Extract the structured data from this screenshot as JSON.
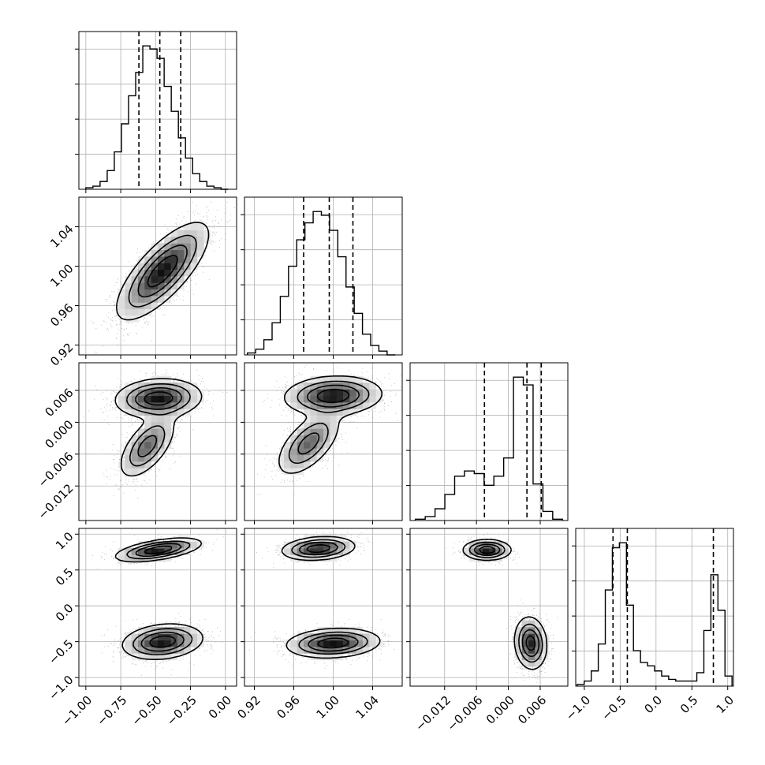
{
  "chart_data": {
    "type": "corner",
    "grid": true,
    "parameters": [
      {
        "range": [
          -1.05,
          0.08
        ],
        "ticks": [
          -1.0,
          -0.75,
          -0.5,
          -0.25,
          0.0
        ],
        "tick_labels": [
          "−1.00",
          "−0.75",
          "−0.50",
          "−0.25",
          "0.00"
        ]
      },
      {
        "range": [
          0.91,
          1.07
        ],
        "ticks": [
          0.92,
          0.96,
          1.0,
          1.04
        ],
        "tick_labels": [
          "0.92",
          "0.96",
          "1.00",
          "1.04"
        ]
      },
      {
        "range": [
          -0.0185,
          0.0112
        ],
        "ticks": [
          -0.012,
          -0.006,
          0.0,
          0.006
        ],
        "tick_labels": [
          "−0.012",
          "−0.006",
          "0.000",
          "0.006"
        ]
      },
      {
        "range": [
          -1.12,
          1.08
        ],
        "ticks": [
          -1.0,
          -0.5,
          0.0,
          0.5,
          1.0
        ],
        "tick_labels": [
          "−1.0",
          "−0.5",
          "0.0",
          "0.5",
          "1.0"
        ]
      }
    ],
    "histograms": [
      {
        "parameter": 0,
        "bin_edges_range": [
          -1.0,
          0.02
        ],
        "counts": [
          1,
          2,
          5,
          12,
          24,
          42,
          60,
          75,
          92,
          90,
          84,
          66,
          50,
          33,
          20,
          10,
          5,
          2,
          1,
          0
        ],
        "quantiles": [
          -0.62,
          -0.47,
          -0.32
        ]
      },
      {
        "parameter": 1,
        "bin_edges_range": [
          0.913,
          1.063
        ],
        "counts": [
          1,
          3,
          8,
          17,
          31,
          47,
          61,
          70,
          76,
          74,
          66,
          52,
          36,
          22,
          11,
          5,
          2,
          0
        ],
        "quantiles": [
          0.97,
          0.996,
          1.02
        ]
      },
      {
        "parameter": 2,
        "bin_edges_range": [
          -0.0175,
          0.0102
        ],
        "counts": [
          1,
          3,
          9,
          20,
          34,
          38,
          36,
          27,
          34,
          48,
          110,
          104,
          28,
          7,
          1
        ],
        "quantiles": [
          -0.0045,
          0.0035,
          0.0062
        ]
      },
      {
        "parameter": 3,
        "bin_edges_range": [
          -1.1,
          1.06
        ],
        "counts": [
          1,
          3,
          9,
          25,
          57,
          82,
          85,
          48,
          21,
          14,
          12,
          9,
          6,
          4,
          3,
          3,
          3,
          8,
          33,
          66,
          45,
          6
        ],
        "quantiles": [
          -0.6,
          -0.4,
          0.8
        ]
      }
    ],
    "scatter_pairs": [
      {
        "x_parameter": 0,
        "y_parameter": 1,
        "modes": [
          {
            "center": [
              -0.45,
              0.995
            ],
            "spread": [
              0.16,
              0.024
            ],
            "corr": 0.75,
            "weight": 1
          }
        ]
      },
      {
        "x_parameter": 0,
        "y_parameter": 2,
        "modes": [
          {
            "center": [
              -0.48,
              0.0045
            ],
            "spread": [
              0.15,
              0.0018
            ],
            "corr": 0.1,
            "weight": 0.62
          },
          {
            "center": [
              -0.56,
              -0.0045
            ],
            "spread": [
              0.1,
              0.003
            ],
            "corr": 0.6,
            "weight": 0.38
          }
        ]
      },
      {
        "x_parameter": 1,
        "y_parameter": 2,
        "modes": [
          {
            "center": [
              1.0,
              0.005
            ],
            "spread": [
              0.024,
              0.0018
            ],
            "corr": 0.1,
            "weight": 0.62
          },
          {
            "center": [
              0.975,
              -0.004
            ],
            "spread": [
              0.016,
              0.003
            ],
            "corr": 0.6,
            "weight": 0.38
          }
        ]
      },
      {
        "x_parameter": 0,
        "y_parameter": 3,
        "modes": [
          {
            "center": [
              -0.48,
              0.78
            ],
            "spread": [
              0.15,
              0.08
            ],
            "corr": 0.55,
            "weight": 0.38
          },
          {
            "center": [
              -0.45,
              -0.5
            ],
            "spread": [
              0.14,
              0.12
            ],
            "corr": 0.2,
            "weight": 0.62
          }
        ]
      },
      {
        "x_parameter": 1,
        "y_parameter": 3,
        "modes": [
          {
            "center": [
              0.985,
              0.8
            ],
            "spread": [
              0.018,
              0.08
            ],
            "corr": 0.2,
            "weight": 0.38
          },
          {
            "center": [
              1.0,
              -0.52
            ],
            "spread": [
              0.023,
              0.1
            ],
            "corr": 0.15,
            "weight": 0.62
          }
        ]
      },
      {
        "x_parameter": 2,
        "y_parameter": 3,
        "modes": [
          {
            "center": [
              -0.004,
              0.78
            ],
            "spread": [
              0.0022,
              0.07
            ],
            "corr": 0,
            "weight": 0.38
          },
          {
            "center": [
              0.0042,
              -0.52
            ],
            "spread": [
              0.0015,
              0.18
            ],
            "corr": -0.1,
            "weight": 0.62
          }
        ]
      }
    ]
  }
}
